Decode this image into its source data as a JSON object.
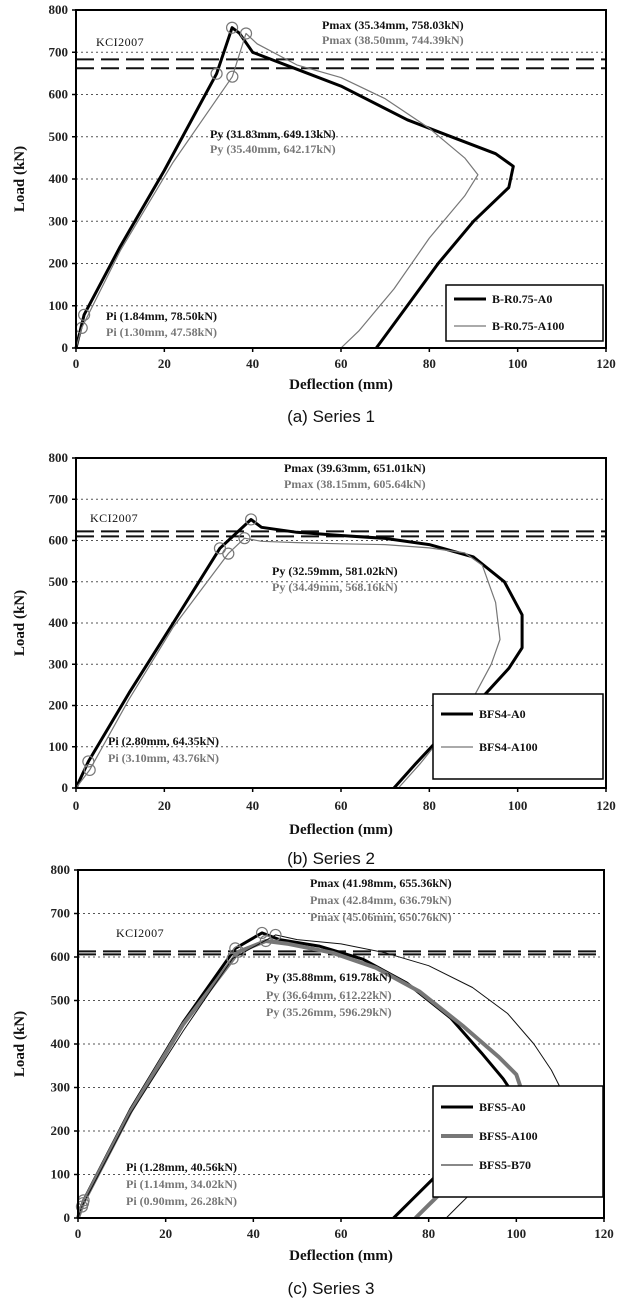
{
  "chart_data": [
    {
      "type": "line",
      "caption": "(a) Series 1",
      "xlabel": "Deflection (mm)",
      "ylabel": "Load (kN)",
      "xlim": [
        0,
        120
      ],
      "ylim": [
        0,
        800
      ],
      "xticks": [
        "0",
        "20",
        "40",
        "60",
        "80",
        "100",
        "120"
      ],
      "yticks": [
        "0",
        "100",
        "200",
        "300",
        "400",
        "500",
        "600",
        "700",
        "800"
      ],
      "grid": "horizontal-dotted",
      "legend": "bottom-right",
      "kci_label": "KCI2007",
      "kci_lines": [
        683,
        662
      ],
      "annotations": [
        {
          "text": "Pmax (35.34mm, 758.03kN)",
          "color": "#111111"
        },
        {
          "text": "Pmax (38.50mm, 744.39kN)",
          "color": "#777777"
        },
        {
          "text": "Py (31.83mm, 649.13kN)",
          "color": "#111111"
        },
        {
          "text": "Py (35.40mm, 642.17kN)",
          "color": "#777777"
        },
        {
          "text": "Pi (1.84mm, 78.50kN)",
          "color": "#111111"
        },
        {
          "text": "Pi (1.30mm, 47.58kN)",
          "color": "#777777"
        }
      ],
      "series": [
        {
          "name": "B-R0.75-A0",
          "color": "#000000",
          "width": 3,
          "points": [
            [
              0,
              0
            ],
            [
              1.84,
              78.5
            ],
            [
              10,
              240
            ],
            [
              20,
              420
            ],
            [
              31.83,
              649.13
            ],
            [
              35.34,
              758.03
            ],
            [
              37,
              745
            ],
            [
              40,
              700
            ],
            [
              50,
              660
            ],
            [
              60,
              620
            ],
            [
              75,
              540
            ],
            [
              85,
              500
            ],
            [
              95,
              460
            ],
            [
              99,
              430
            ],
            [
              98,
              380
            ],
            [
              90,
              300
            ],
            [
              82,
              200
            ],
            [
              75,
              100
            ],
            [
              68,
              0
            ]
          ],
          "markers": [
            [
              1.84,
              78.5
            ],
            [
              31.83,
              649.13
            ],
            [
              35.34,
              758.03
            ]
          ]
        },
        {
          "name": "B-R0.75-A100",
          "color": "#777777",
          "width": 1.2,
          "points": [
            [
              0,
              0
            ],
            [
              1.3,
              47.58
            ],
            [
              10,
              230
            ],
            [
              22,
              440
            ],
            [
              35.4,
              642.17
            ],
            [
              38.5,
              744.39
            ],
            [
              41,
              720
            ],
            [
              50,
              670
            ],
            [
              60,
              640
            ],
            [
              70,
              590
            ],
            [
              80,
              520
            ],
            [
              88,
              450
            ],
            [
              91,
              410
            ],
            [
              88,
              360
            ],
            [
              80,
              260
            ],
            [
              72,
              140
            ],
            [
              64,
              40
            ],
            [
              60,
              0
            ]
          ],
          "markers": [
            [
              1.3,
              47.58
            ],
            [
              35.4,
              642.17
            ],
            [
              38.5,
              744.39
            ]
          ]
        }
      ]
    },
    {
      "type": "line",
      "caption": "(b) Series 2",
      "xlabel": "Deflection (mm)",
      "ylabel": "Load (kN)",
      "xlim": [
        0,
        120
      ],
      "ylim": [
        0,
        800
      ],
      "xticks": [
        "0",
        "20",
        "40",
        "60",
        "80",
        "100",
        "120"
      ],
      "yticks": [
        "0",
        "100",
        "200",
        "300",
        "400",
        "500",
        "600",
        "700",
        "800"
      ],
      "grid": "horizontal-dotted",
      "legend": "bottom-right",
      "kci_label": "KCI2007",
      "kci_lines": [
        622,
        610
      ],
      "annotations": [
        {
          "text": "Pmax (39.63mm, 651.01kN)",
          "color": "#111111"
        },
        {
          "text": "Pmax (38.15mm, 605.64kN)",
          "color": "#777777"
        },
        {
          "text": "Py (32.59mm, 581.02kN)",
          "color": "#111111"
        },
        {
          "text": "Py (34.49mm, 568.16kN)",
          "color": "#777777"
        },
        {
          "text": "Pi (2.80mm, 64.35kN)",
          "color": "#111111"
        },
        {
          "text": "Pi (3.10mm, 43.76kN)",
          "color": "#777777"
        }
      ],
      "series": [
        {
          "name": "BFS4-A0",
          "color": "#000000",
          "width": 3,
          "points": [
            [
              0,
              0
            ],
            [
              2.8,
              64.35
            ],
            [
              12,
              230
            ],
            [
              22,
              400
            ],
            [
              32.59,
              581.02
            ],
            [
              39.63,
              651.01
            ],
            [
              42,
              632
            ],
            [
              50,
              620
            ],
            [
              60,
              612
            ],
            [
              70,
              605
            ],
            [
              80,
              590
            ],
            [
              90,
              560
            ],
            [
              97,
              500
            ],
            [
              101,
              420
            ],
            [
              101,
              340
            ],
            [
              98,
              290
            ],
            [
              92,
              220
            ],
            [
              84,
              140
            ],
            [
              77,
              60
            ],
            [
              72,
              0
            ]
          ],
          "markers": [
            [
              2.8,
              64.35
            ],
            [
              32.59,
              581.02
            ],
            [
              39.63,
              651.01
            ]
          ]
        },
        {
          "name": "BFS4-A100",
          "color": "#777777",
          "width": 1.2,
          "points": [
            [
              0,
              0
            ],
            [
              3.1,
              43.76
            ],
            [
              12,
              215
            ],
            [
              22,
              390
            ],
            [
              34.49,
              568.16
            ],
            [
              38.15,
              605.64
            ],
            [
              42,
              598
            ],
            [
              50,
              595
            ],
            [
              60,
              592
            ],
            [
              70,
              590
            ],
            [
              80,
              582
            ],
            [
              88,
              570
            ],
            [
              92,
              540
            ],
            [
              95,
              450
            ],
            [
              96,
              360
            ],
            [
              95,
              330
            ],
            [
              94,
              300
            ],
            [
              90,
              220
            ],
            [
              84,
              140
            ],
            [
              78,
              60
            ],
            [
              73,
              0
            ]
          ],
          "markers": [
            [
              3.1,
              43.76
            ],
            [
              34.49,
              568.16
            ],
            [
              38.15,
              605.64
            ]
          ]
        }
      ]
    },
    {
      "type": "line",
      "caption": "(c) Series 3",
      "xlabel": "Deflection (mm)",
      "ylabel": "Load (kN)",
      "xlim": [
        0,
        120
      ],
      "ylim": [
        0,
        800
      ],
      "xticks": [
        "0",
        "20",
        "40",
        "60",
        "80",
        "100",
        "120"
      ],
      "yticks": [
        "0",
        "100",
        "200",
        "300",
        "400",
        "500",
        "600",
        "700",
        "800"
      ],
      "grid": "horizontal-dotted",
      "legend": "bottom-right",
      "kci_label": "KCI2007",
      "kci_lines": [
        613,
        606
      ],
      "annotations": [
        {
          "text": "Pmax (41.98mm, 655.36kN)",
          "color": "#111111"
        },
        {
          "text": "Pmax (42.84mm, 636.79kN)",
          "color": "#777777"
        },
        {
          "text": "Pmax (45.06mm, 650.76kN)",
          "color": "#777777"
        },
        {
          "text": "Py (35.88mm, 619.78kN)",
          "color": "#111111"
        },
        {
          "text": "Py (36.64mm, 612.22kN)",
          "color": "#777777"
        },
        {
          "text": "Py (35.26mm, 596.29kN)",
          "color": "#777777"
        },
        {
          "text": "Pi (1.28mm, 40.56kN)",
          "color": "#111111"
        },
        {
          "text": "Pi (1.14mm, 34.02kN)",
          "color": "#777777"
        },
        {
          "text": "Pi (0.90mm, 26.28kN)",
          "color": "#777777"
        }
      ],
      "series": [
        {
          "name": "BFS5-A0",
          "color": "#000000",
          "width": 3,
          "points": [
            [
              0,
              0
            ],
            [
              1.28,
              40.56
            ],
            [
              12,
              250
            ],
            [
              24,
              450
            ],
            [
              35.88,
              619.78
            ],
            [
              41.98,
              655.36
            ],
            [
              46,
              640
            ],
            [
              55,
              625
            ],
            [
              65,
              595
            ],
            [
              75,
              540
            ],
            [
              85,
              460
            ],
            [
              92,
              380
            ],
            [
              97,
              320
            ],
            [
              99,
              290
            ],
            [
              97,
              260
            ],
            [
              90,
              180
            ],
            [
              82,
              100
            ],
            [
              76,
              40
            ],
            [
              72,
              0
            ]
          ],
          "markers": [
            [
              1.28,
              40.56
            ],
            [
              35.88,
              619.78
            ],
            [
              41.98,
              655.36
            ]
          ]
        },
        {
          "name": "BFS5-A100",
          "color": "#777777",
          "width": 4,
          "points": [
            [
              0,
              0
            ],
            [
              1.14,
              34.02
            ],
            [
              12,
              245
            ],
            [
              24,
              445
            ],
            [
              36.64,
              612.22
            ],
            [
              42.84,
              636.79
            ],
            [
              48,
              630
            ],
            [
              58,
              610
            ],
            [
              68,
              575
            ],
            [
              78,
              520
            ],
            [
              88,
              440
            ],
            [
              96,
              370
            ],
            [
              100,
              330
            ],
            [
              101,
              300
            ],
            [
              99,
              250
            ],
            [
              93,
              170
            ],
            [
              86,
              90
            ],
            [
              80,
              30
            ],
            [
              77,
              0
            ]
          ],
          "markers": [
            [
              1.14,
              34.02
            ],
            [
              36.64,
              612.22
            ],
            [
              42.84,
              636.79
            ]
          ]
        },
        {
          "name": "BFS5-B70",
          "color": "#111111",
          "width": 1,
          "points": [
            [
              0,
              0
            ],
            [
              0.9,
              26.28
            ],
            [
              12,
              240
            ],
            [
              24,
              430
            ],
            [
              35.26,
              596.29
            ],
            [
              45.06,
              650.76
            ],
            [
              50,
              640
            ],
            [
              60,
              630
            ],
            [
              70,
              610
            ],
            [
              80,
              580
            ],
            [
              90,
              530
            ],
            [
              98,
              470
            ],
            [
              104,
              400
            ],
            [
              108,
              340
            ],
            [
              110,
              300
            ],
            [
              108,
              260
            ],
            [
              104,
              220
            ],
            [
              98,
              150
            ],
            [
              92,
              80
            ],
            [
              87,
              30
            ],
            [
              84,
              0
            ]
          ],
          "markers": [
            [
              0.9,
              26.28
            ],
            [
              35.26,
              596.29
            ],
            [
              45.06,
              650.76
            ]
          ]
        }
      ]
    }
  ]
}
